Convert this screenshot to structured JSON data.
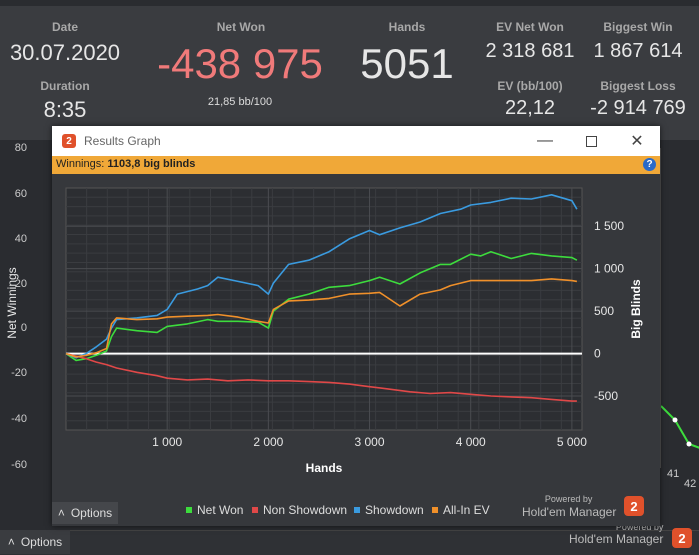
{
  "stats": {
    "date_label": "Date",
    "date_value": "30.07.2020",
    "duration_label": "Duration",
    "duration_value": "8:35",
    "net_won_label": "Net Won",
    "net_won_value": "-438 975",
    "net_won_sub": "21,85 bb/100",
    "hands_label": "Hands",
    "hands_value": "5051",
    "ev_net_won_label": "EV Net Won",
    "ev_net_won_value": "2 318 681",
    "biggest_win_label": "Biggest Win",
    "biggest_win_value": "1 867 614",
    "ev_bb_label": "EV (bb/100)",
    "ev_bb_value": "22,12",
    "biggest_loss_label": "Biggest Loss",
    "biggest_loss_value": "-2 914 769"
  },
  "background": {
    "y_ticks": [
      "80",
      "60",
      "40",
      "20",
      "0",
      "-20",
      "-40",
      "-60"
    ],
    "right_ticks": [
      "41",
      "42"
    ],
    "options_label": "Options",
    "powered_by": "Powered by",
    "brand": "Hold'em Manager"
  },
  "dialog": {
    "title": "Results Graph",
    "winnings_label": "Winnings:",
    "winnings_value": "1103,8 big blinds",
    "options_label": "Options",
    "powered_by": "Powered by",
    "brand": "Hold'em Manager",
    "logo_glyph": "2"
  },
  "colors": {
    "net_won": "#3ddc3d",
    "non_showdown": "#e04848",
    "showdown": "#3a9be0",
    "all_in_ev": "#f0902a",
    "net_won_stat": "#f07a7a"
  },
  "chart_data": {
    "type": "line",
    "xlabel": "Hands",
    "ylabel_left": "Net Winnings",
    "ylabel_right": "Big Blinds",
    "x_ticks": [
      "1 000",
      "2 000",
      "3 000",
      "4 000",
      "5 000"
    ],
    "x_tick_values": [
      1000,
      2000,
      3000,
      4000,
      5000
    ],
    "y_ticks": [
      "1 500",
      "1 000",
      "500",
      "0",
      "-500"
    ],
    "y_tick_values": [
      1500,
      1000,
      500,
      0,
      -500
    ],
    "xlim": [
      0,
      5100
    ],
    "ylim": [
      -900,
      1950
    ],
    "series": [
      {
        "name": "Net Won",
        "key": "net_won",
        "x": [
          0,
          100,
          200,
          300,
          400,
          450,
          500,
          700,
          900,
          1000,
          1200,
          1400,
          1500,
          1700,
          1900,
          2000,
          2050,
          2200,
          2400,
          2600,
          2800,
          3000,
          3100,
          3300,
          3500,
          3700,
          3800,
          4000,
          4100,
          4200,
          4400,
          4600,
          4800,
          5000,
          5050
        ],
        "y": [
          0,
          -80,
          -60,
          -20,
          30,
          200,
          300,
          270,
          250,
          320,
          350,
          400,
          380,
          380,
          370,
          300,
          500,
          640,
          700,
          780,
          800,
          860,
          900,
          820,
          950,
          1050,
          1050,
          1170,
          1150,
          1200,
          1120,
          1180,
          1150,
          1130,
          1100
        ]
      },
      {
        "name": "Non Showdown",
        "key": "non_showdown",
        "x": [
          0,
          100,
          200,
          300,
          400,
          500,
          700,
          900,
          1000,
          1200,
          1400,
          1600,
          1800,
          2000,
          2200,
          2400,
          2600,
          2800,
          3000,
          3200,
          3400,
          3600,
          3800,
          4000,
          4200,
          4400,
          4600,
          4800,
          5000,
          5050
        ],
        "y": [
          0,
          -30,
          -60,
          -100,
          -130,
          -170,
          -220,
          -260,
          -290,
          -310,
          -300,
          -320,
          -310,
          -320,
          -320,
          -330,
          -340,
          -360,
          -390,
          -420,
          -450,
          -470,
          -460,
          -480,
          -500,
          -510,
          -520,
          -540,
          -560,
          -560
        ]
      },
      {
        "name": "Showdown",
        "key": "showdown",
        "x": [
          0,
          100,
          200,
          300,
          400,
          450,
          500,
          700,
          900,
          1000,
          1100,
          1300,
          1400,
          1500,
          1700,
          1900,
          2000,
          2050,
          2200,
          2400,
          2600,
          2800,
          3000,
          3100,
          3300,
          3500,
          3700,
          3900,
          4000,
          4200,
          4400,
          4600,
          4800,
          5000,
          5050
        ],
        "y": [
          0,
          -50,
          0,
          80,
          170,
          300,
          400,
          420,
          450,
          520,
          700,
          760,
          800,
          900,
          850,
          800,
          700,
          830,
          1050,
          1100,
          1200,
          1350,
          1450,
          1400,
          1480,
          1550,
          1650,
          1700,
          1750,
          1780,
          1830,
          1820,
          1870,
          1800,
          1700
        ]
      },
      {
        "name": "All-In EV",
        "key": "all_in_ev",
        "x": [
          0,
          100,
          200,
          300,
          400,
          450,
          500,
          700,
          900,
          1000,
          1200,
          1400,
          1500,
          1700,
          1900,
          2000,
          2050,
          2200,
          2400,
          2600,
          2800,
          3000,
          3100,
          3300,
          3500,
          3700,
          3800,
          4000,
          4200,
          4400,
          4600,
          4800,
          5000,
          5050
        ],
        "y": [
          0,
          -40,
          -20,
          10,
          60,
          350,
          420,
          400,
          410,
          430,
          440,
          450,
          460,
          430,
          380,
          360,
          520,
          620,
          630,
          650,
          700,
          710,
          720,
          560,
          700,
          750,
          800,
          860,
          860,
          860,
          860,
          880,
          860,
          850
        ]
      }
    ]
  }
}
